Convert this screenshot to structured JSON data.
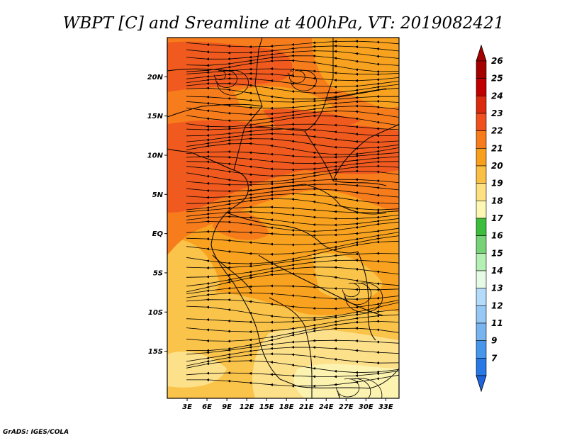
{
  "title": "WBPT [C] and Sreamline at 400hPa, VT: 2019082421",
  "credit": "GrADS: IGES/COLA",
  "map": {
    "lon_range": [
      0,
      35
    ],
    "lat_range": [
      -21,
      25
    ],
    "lat_ticks": [
      {
        "value": 20,
        "label": "20N"
      },
      {
        "value": 15,
        "label": "15N"
      },
      {
        "value": 10,
        "label": "10N"
      },
      {
        "value": 5,
        "label": "5N"
      },
      {
        "value": 0,
        "label": "EQ"
      },
      {
        "value": -5,
        "label": "5S"
      },
      {
        "value": -10,
        "label": "10S"
      },
      {
        "value": -15,
        "label": "15S"
      }
    ],
    "lon_ticks": [
      {
        "value": 3,
        "label": "3E"
      },
      {
        "value": 6,
        "label": "6E"
      },
      {
        "value": 9,
        "label": "9E"
      },
      {
        "value": 12,
        "label": "12E"
      },
      {
        "value": 15,
        "label": "15E"
      },
      {
        "value": 18,
        "label": "18E"
      },
      {
        "value": 21,
        "label": "21E"
      },
      {
        "value": 24,
        "label": "24E"
      },
      {
        "value": 27,
        "label": "27E"
      },
      {
        "value": 30,
        "label": "30E"
      },
      {
        "value": 33,
        "label": "33E"
      }
    ]
  },
  "colorbar": {
    "levels": [
      {
        "label": "26",
        "color": "#a50000"
      },
      {
        "label": "25",
        "color": "#c00000"
      },
      {
        "label": "24",
        "color": "#dc2a0e"
      },
      {
        "label": "23",
        "color": "#f0501e"
      },
      {
        "label": "22",
        "color": "#f87c1a"
      },
      {
        "label": "21",
        "color": "#f8a01e"
      },
      {
        "label": "20",
        "color": "#fac046"
      },
      {
        "label": "19",
        "color": "#fce082"
      },
      {
        "label": "18",
        "color": "#fcf8b4"
      },
      {
        "label": "17",
        "color": "#3cbe3c"
      },
      {
        "label": "16",
        "color": "#78d278"
      },
      {
        "label": "15",
        "color": "#b4f0b4"
      },
      {
        "label": "14",
        "color": "#e6fae6"
      },
      {
        "label": "13",
        "color": "#b4dcfa"
      },
      {
        "label": "12",
        "color": "#96c8f5"
      },
      {
        "label": "11",
        "color": "#78b4f0"
      },
      {
        "label": "9",
        "color": "#4696eb"
      },
      {
        "label": "7",
        "color": "#2878e6"
      }
    ],
    "top_cap_color": "#a50000",
    "bottom_cap_color": "#1e64dc"
  },
  "field_colors": {
    "c23": "#f05a1e",
    "c22": "#f77d1c",
    "c21": "#f8a21f",
    "c20": "#fac34a",
    "c19": "#fde08a",
    "c18": "#fdf3b0"
  }
}
